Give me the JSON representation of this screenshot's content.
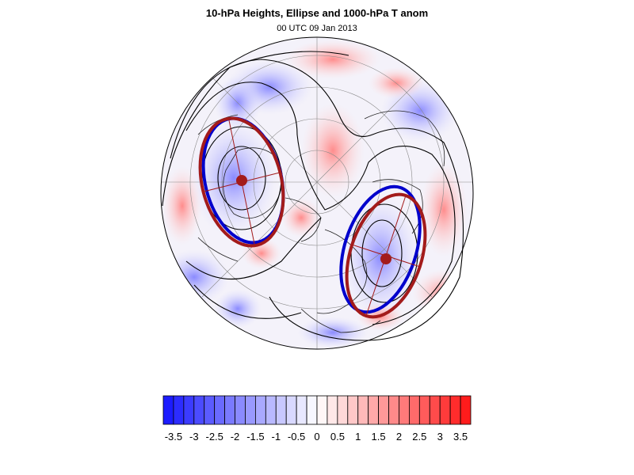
{
  "title": "10-hPa Heights, Ellipse and 1000-hPa T anom",
  "subtitle": "00 UTC 09 Jan 2013",
  "colors": {
    "anomaly_negative": "#1a1aff",
    "anomaly_positive": "#ff1a1a",
    "ellipse_fill_outline": "#0000cc",
    "ellipse_outline": "#a31b1b",
    "height_contours": "#000000"
  },
  "colorbar": {
    "levels": [
      -3.75,
      -3.5,
      -3.25,
      -3,
      -2.75,
      -2.5,
      -2.25,
      -2,
      -1.75,
      -1.5,
      -1.25,
      -1,
      -0.75,
      -0.5,
      -0.25,
      0,
      0.25,
      0.5,
      0.75,
      1,
      1.25,
      1.5,
      1.75,
      2,
      2.25,
      2.5,
      2.75,
      3,
      3.25,
      3.5,
      3.75
    ],
    "labels": [
      "-3.5",
      "-3",
      "-2.5",
      "-2",
      "-1.5",
      "-1",
      "-0.5",
      "0",
      "0.5",
      "1",
      "1.5",
      "2",
      "2.5",
      "3",
      "3.5"
    ],
    "min": -3.75,
    "max": 3.75
  }
}
